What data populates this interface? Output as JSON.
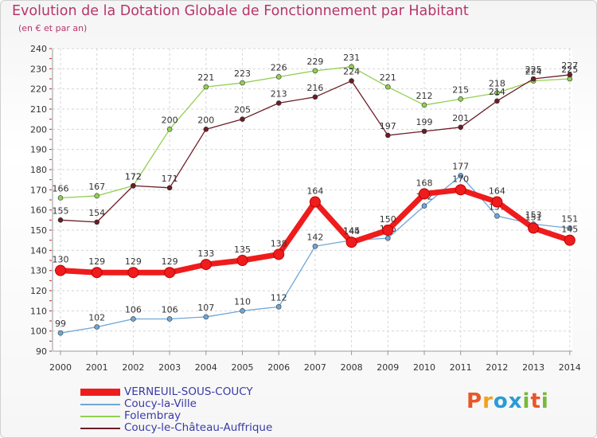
{
  "header": {
    "title": "Evolution de la Dotation Globale de Fonctionnement par Habitant",
    "subtitle": "(en € et par an)"
  },
  "logo": {
    "text": "Proxiti",
    "letters": [
      "P",
      "r",
      "o",
      "x",
      "i",
      "t",
      "i"
    ],
    "colors": [
      "#e8572a",
      "#f0a21f",
      "#2a9bd6",
      "#2a9bd6",
      "#79b83b",
      "#e8572a",
      "#79b83b"
    ]
  },
  "chart_data": {
    "type": "line",
    "title": "Evolution de la Dotation Globale de Fonctionnement par Habitant",
    "ylabel": "(en € et par an)",
    "xlabel": "",
    "x": [
      "2000",
      "2001",
      "2002",
      "2003",
      "2004",
      "2005",
      "2006",
      "2007",
      "2008",
      "2009",
      "2010",
      "2011",
      "2012",
      "2013",
      "2014"
    ],
    "ylim": [
      90,
      240
    ],
    "yticks": [
      "90",
      "100",
      "110",
      "120",
      "130",
      "140",
      "150",
      "160",
      "170",
      "180",
      "190",
      "200",
      "210",
      "220",
      "230",
      "240"
    ],
    "grid": true,
    "legend_position": "bottom-left",
    "series": [
      {
        "name": "Folembray",
        "color": "#92d050",
        "values": [
          166,
          167,
          172,
          200,
          221,
          223,
          226,
          229,
          231,
          221,
          212,
          215,
          218,
          224,
          225
        ],
        "labels": [
          "166",
          "167",
          "172",
          "200",
          "221",
          "223",
          "226",
          "229",
          "231",
          "221",
          "212",
          "215",
          "218",
          "224",
          "225"
        ]
      },
      {
        "name": "Coucy-le-Château-Auffrique",
        "color": "#6b1d26",
        "values": [
          155,
          154,
          172,
          171,
          200,
          205,
          213,
          216,
          224,
          197,
          199,
          201,
          214,
          225,
          227
        ],
        "labels": [
          "155",
          "154",
          "172",
          "171",
          "200",
          "205",
          "213",
          "216",
          "224",
          "197",
          "199",
          "201",
          "214",
          "225",
          "227"
        ]
      },
      {
        "name": "Coucy-la-Ville",
        "color": "#6fa7d8",
        "values": [
          99,
          102,
          106,
          106,
          107,
          110,
          112,
          142,
          145,
          146,
          162,
          177,
          157,
          153,
          151
        ],
        "labels": [
          "99",
          "102",
          "106",
          "106",
          "107",
          "110",
          "112",
          "142",
          "145",
          "146",
          "162",
          "177",
          "157",
          "153",
          "151"
        ]
      },
      {
        "name": "VERNEUIL-SOUS-COUCY",
        "color": "#ee1c1c",
        "values": [
          130,
          129,
          129,
          129,
          133,
          135,
          138,
          164,
          144,
          150,
          168,
          170,
          164,
          151,
          145
        ],
        "labels": [
          "130",
          "129",
          "129",
          "129",
          "133",
          "135",
          "138",
          "164",
          "144",
          "150",
          "168",
          "170",
          "164",
          "151",
          "145"
        ]
      }
    ],
    "legend_order": [
      "VERNEUIL-SOUS-COUCY",
      "Coucy-la-Ville",
      "Folembray",
      "Coucy-le-Château-Auffrique"
    ]
  }
}
